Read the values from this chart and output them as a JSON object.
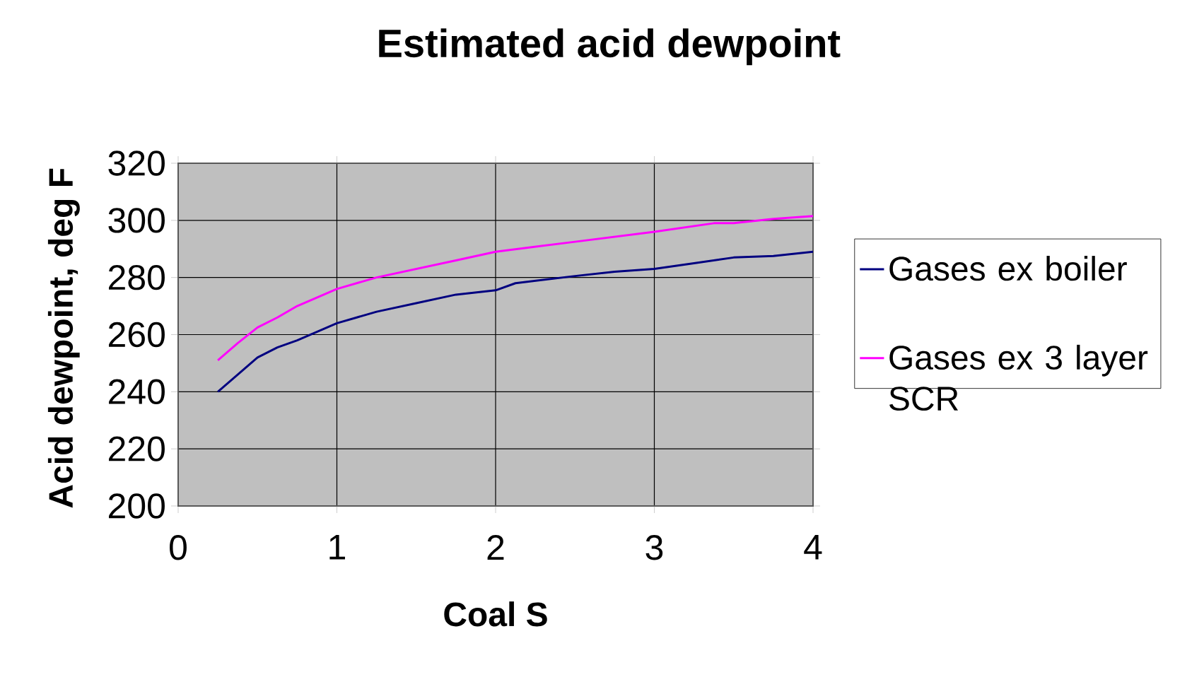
{
  "chart_data": {
    "type": "line",
    "title": "Estimated acid dewpoint",
    "xlabel": "Coal S",
    "ylabel": "Acid dewpoint, deg F",
    "xlim": [
      0,
      4
    ],
    "xticks": [
      0,
      1,
      2,
      3,
      4
    ],
    "ylim": [
      200,
      320
    ],
    "yticks": [
      200,
      220,
      240,
      260,
      280,
      300,
      320
    ],
    "grid": true,
    "legend": "right",
    "marker": "none",
    "line_style": "solid",
    "series": [
      {
        "name": "Gases ex boiler",
        "color": "#000080",
        "x": [
          0.25,
          0.375,
          0.5,
          0.625,
          0.75,
          1,
          1.125,
          1.25,
          1.5,
          1.75,
          2,
          2.125,
          2.5,
          2.75,
          3,
          3.25,
          3.5,
          3.75,
          4
        ],
        "values": [
          240,
          246,
          252,
          255.5,
          258,
          264,
          266,
          268,
          271,
          274,
          275.5,
          278,
          280.5,
          282,
          283,
          285,
          287,
          287.5,
          289
        ]
      },
      {
        "name": "Gases ex 3 layer SCR",
        "color": "#ff00ff",
        "x": [
          0.25,
          0.375,
          0.5,
          0.625,
          0.75,
          1,
          1.125,
          1.25,
          1.5,
          1.75,
          2,
          2.5,
          3,
          3.375,
          3.5,
          3.75,
          4
        ],
        "values": [
          251,
          257,
          262.5,
          266,
          270,
          276,
          278,
          280,
          283,
          286,
          289,
          292.5,
          296,
          299,
          299,
          300.5,
          301.5
        ]
      }
    ]
  }
}
